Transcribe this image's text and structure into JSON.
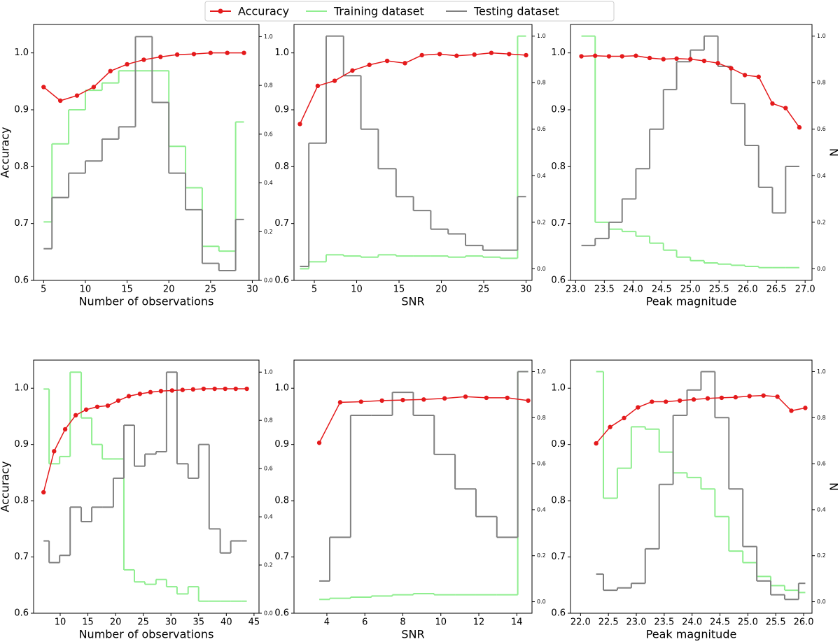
{
  "legend": [
    {
      "name": "Accuracy",
      "color": "#e41a1c"
    },
    {
      "name": "Training dataset",
      "color": "#90ee90"
    },
    {
      "name": "Testing dataset",
      "color": "#808080"
    }
  ],
  "chart_data": [
    {
      "type": "line",
      "xlabel": "Number of observations",
      "ylabel": "Accuracy",
      "xlim": [
        3.8,
        30.8
      ],
      "xticks": [
        5,
        10,
        15,
        20,
        25,
        30
      ],
      "ylim": [
        0.6,
        1.05
      ],
      "yticks": [
        0.6,
        0.7,
        0.8,
        0.9,
        {
          "value": 1,
          "label": "1.0"
        }
      ],
      "y2lim": [
        0,
        1.05
      ],
      "y2ticks": [
        {
          "value": 0,
          "label": "0.0"
        },
        0.2,
        0.4,
        0.6,
        0.8,
        {
          "value": 1,
          "label": "1.0"
        }
      ],
      "series": [
        {
          "type": "line",
          "x": [
            5,
            7,
            9,
            11,
            13,
            15,
            17,
            19,
            21,
            23,
            25,
            27,
            29
          ],
          "values": [
            0.94,
            0.916,
            0.925,
            0.94,
            0.968,
            0.98,
            0.988,
            0.993,
            0.997,
            0.998,
            1.0,
            1.0,
            1.0
          ]
        },
        {
          "type": "step",
          "axis": "y2",
          "bins": [
            5,
            6,
            8,
            10,
            12,
            14,
            16,
            18,
            20,
            22,
            24,
            26,
            28,
            29
          ],
          "values": [
            0.24,
            0.56,
            0.7,
            0.78,
            0.81,
            0.86,
            0.86,
            0.86,
            0.55,
            0.38,
            0.14,
            0.12,
            0.65
          ]
        },
        {
          "type": "step",
          "axis": "y2",
          "bins": [
            5,
            6,
            8,
            10,
            12,
            14,
            16,
            18,
            20,
            22,
            24,
            26,
            28,
            29
          ],
          "values": [
            0.13,
            0.34,
            0.44,
            0.49,
            0.58,
            0.63,
            1.0,
            0.73,
            0.44,
            0.29,
            0.07,
            0.04,
            0.25
          ]
        }
      ]
    },
    {
      "type": "line",
      "xlabel": "SNR",
      "xlim": [
        2.6,
        30.7
      ],
      "xticks": [
        5,
        10,
        15,
        20,
        25,
        30
      ],
      "ylim": [
        0.6,
        1.05
      ],
      "yticks": [
        0.6,
        0.7,
        0.8,
        0.9,
        {
          "value": 1,
          "label": "1.0"
        }
      ],
      "y2lim": [
        -0.05,
        1.05
      ],
      "y2ticks": [
        {
          "value": 0,
          "label": "0.0"
        },
        0.2,
        0.4,
        0.6,
        0.8,
        {
          "value": 1,
          "label": "1.0"
        }
      ],
      "series": [
        {
          "type": "line",
          "x": [
            3.3,
            5.4,
            7.4,
            9.5,
            11.5,
            13.6,
            15.7,
            17.7,
            19.8,
            21.8,
            23.9,
            25.9,
            28.0,
            30.0
          ],
          "values": [
            0.875,
            0.942,
            0.951,
            0.969,
            0.979,
            0.986,
            0.982,
            0.996,
            0.998,
            0.995,
            0.997,
            1.0,
            0.998,
            0.996
          ]
        },
        {
          "type": "step",
          "axis": "y2",
          "bins": [
            3.3,
            4.35,
            6.4,
            8.45,
            10.5,
            12.55,
            14.65,
            16.7,
            18.75,
            20.8,
            22.85,
            24.9,
            26.95,
            29.0,
            30.0
          ],
          "values": [
            0.0,
            0.03,
            0.06,
            0.055,
            0.05,
            0.06,
            0.055,
            0.055,
            0.055,
            0.05,
            0.055,
            0.05,
            0.045,
            1.0
          ]
        },
        {
          "type": "step",
          "axis": "y2",
          "bins": [
            3.3,
            4.35,
            6.4,
            8.45,
            10.5,
            12.55,
            14.65,
            16.7,
            18.75,
            20.8,
            22.85,
            24.9,
            26.95,
            29.0,
            30.0
          ],
          "values": [
            0.01,
            0.54,
            1.0,
            0.83,
            0.6,
            0.43,
            0.31,
            0.25,
            0.17,
            0.15,
            0.1,
            0.08,
            0.08,
            0.31
          ]
        }
      ]
    },
    {
      "type": "line",
      "xlabel": "Peak magnitude",
      "y2label": "N",
      "xlim": [
        22.91,
        27.12
      ],
      "xticks": [
        {
          "value": 23,
          "label": "23.0"
        },
        23.5,
        {
          "value": 24,
          "label": "24.0"
        },
        24.5,
        {
          "value": 25,
          "label": "25.0"
        },
        25.5,
        {
          "value": 26,
          "label": "26.0"
        },
        26.5,
        {
          "value": 27,
          "label": "27.0"
        }
      ],
      "ylim": [
        0.6,
        1.05
      ],
      "yticks": [
        0.6,
        0.7,
        0.8,
        0.9,
        {
          "value": 1,
          "label": "1.0"
        }
      ],
      "y2lim": [
        -0.05,
        1.05
      ],
      "y2ticks": [
        {
          "value": 0,
          "label": "0.0"
        },
        0.2,
        0.4,
        0.6,
        0.8,
        {
          "value": 1,
          "label": "1.0"
        }
      ],
      "series": [
        {
          "type": "line",
          "x": [
            23.1,
            23.34,
            23.58,
            23.81,
            24.05,
            24.29,
            24.53,
            24.76,
            25.0,
            25.24,
            25.48,
            25.71,
            25.95,
            26.19,
            26.43,
            26.66,
            26.9
          ],
          "values": [
            0.994,
            0.995,
            0.994,
            0.994,
            0.995,
            0.991,
            0.989,
            0.99,
            0.989,
            0.986,
            0.982,
            0.973,
            0.961,
            0.958,
            0.911,
            0.903,
            0.869
          ]
        },
        {
          "type": "step",
          "axis": "y2",
          "bins": [
            23.1,
            23.34,
            23.58,
            23.81,
            24.05,
            24.29,
            24.53,
            24.76,
            25.0,
            25.24,
            25.48,
            25.71,
            25.95,
            26.19,
            26.43,
            26.66,
            26.9
          ],
          "values": [
            1.0,
            0.2,
            0.17,
            0.16,
            0.14,
            0.11,
            0.08,
            0.05,
            0.035,
            0.025,
            0.02,
            0.015,
            0.01,
            0.005,
            0.005,
            0.005
          ]
        },
        {
          "type": "step",
          "axis": "y2",
          "bins": [
            23.1,
            23.34,
            23.58,
            23.81,
            24.05,
            24.29,
            24.53,
            24.76,
            25.0,
            25.24,
            25.48,
            25.71,
            25.95,
            26.19,
            26.43,
            26.66,
            26.9
          ],
          "values": [
            0.1,
            0.13,
            0.2,
            0.3,
            0.43,
            0.6,
            0.77,
            0.89,
            0.94,
            1.0,
            0.87,
            0.71,
            0.53,
            0.35,
            0.24,
            0.44
          ]
        }
      ]
    },
    {
      "type": "line",
      "xlabel": "Number of observations",
      "ylabel": "Accuracy",
      "xlim": [
        5.2,
        45.9
      ],
      "xticks": [
        10,
        15,
        20,
        25,
        30,
        35,
        40,
        45
      ],
      "ylim": [
        0.6,
        1.05
      ],
      "yticks": [
        0.6,
        0.7,
        0.8,
        0.9,
        {
          "value": 1,
          "label": "1.0"
        }
      ],
      "y2lim": [
        0,
        1.05
      ],
      "y2ticks": [
        {
          "value": 0,
          "label": "0.0"
        },
        0.2,
        0.4,
        0.6,
        0.8,
        {
          "value": 1,
          "label": "1.0"
        }
      ],
      "series": [
        {
          "type": "line",
          "x": [
            7.0,
            8.9,
            10.9,
            12.8,
            14.7,
            16.7,
            18.6,
            20.5,
            22.4,
            24.4,
            26.3,
            28.2,
            30.2,
            32.1,
            34.0,
            35.9,
            37.9,
            39.8,
            41.7,
            43.7
          ],
          "values": [
            0.815,
            0.888,
            0.927,
            0.952,
            0.962,
            0.967,
            0.969,
            0.978,
            0.986,
            0.99,
            0.993,
            0.995,
            0.996,
            0.997,
            0.998,
            0.999,
            0.999,
            0.999,
            0.999,
            0.999
          ]
        },
        {
          "type": "step",
          "axis": "y2",
          "bins": [
            7.0,
            8.0,
            9.9,
            11.8,
            13.8,
            15.7,
            17.6,
            19.6,
            21.5,
            23.4,
            25.3,
            27.3,
            29.2,
            31.1,
            33.1,
            35.0,
            36.9,
            38.9,
            40.8,
            42.7,
            43.7
          ],
          "values": [
            0.93,
            0.62,
            0.65,
            1.0,
            0.81,
            0.7,
            0.64,
            0.64,
            0.18,
            0.13,
            0.12,
            0.14,
            0.11,
            0.08,
            0.11,
            0.05,
            0.05,
            0.05,
            0.05,
            0.05
          ]
        },
        {
          "type": "step",
          "axis": "y2",
          "bins": [
            7.0,
            8.0,
            9.9,
            11.8,
            13.8,
            15.7,
            17.6,
            19.6,
            21.5,
            23.4,
            25.3,
            27.3,
            29.2,
            31.1,
            33.1,
            35.0,
            36.9,
            38.9,
            40.8,
            42.7,
            43.7
          ],
          "values": [
            0.3,
            0.21,
            0.24,
            0.44,
            0.38,
            0.44,
            0.44,
            0.56,
            0.78,
            0.61,
            0.66,
            0.67,
            1.0,
            0.62,
            0.56,
            0.7,
            0.35,
            0.25,
            0.3,
            0.3
          ]
        }
      ]
    },
    {
      "type": "line",
      "xlabel": "SNR",
      "xlim": [
        2.27,
        14.8
      ],
      "xticks": [
        4,
        6,
        8,
        10,
        12,
        14
      ],
      "ylim": [
        0.6,
        1.05
      ],
      "yticks": [
        0.6,
        0.7,
        0.8,
        0.9,
        {
          "value": 1,
          "label": "1.0"
        }
      ],
      "y2lim": [
        -0.05,
        1.05
      ],
      "y2ticks": [
        {
          "value": 0,
          "label": "0.0"
        },
        0.2,
        0.4,
        0.6,
        0.8,
        {
          "value": 1,
          "label": "1.0"
        }
      ],
      "series": [
        {
          "type": "line",
          "x": [
            3.6,
            4.7,
            5.8,
            6.9,
            8.0,
            9.1,
            10.2,
            11.3,
            12.4,
            13.5,
            14.6
          ],
          "values": [
            0.903,
            0.975,
            0.976,
            0.978,
            0.979,
            0.98,
            0.982,
            0.985,
            0.983,
            0.983,
            0.978
          ]
        },
        {
          "type": "step",
          "axis": "y2",
          "bins": [
            3.6,
            4.15,
            5.25,
            6.35,
            7.45,
            8.55,
            9.65,
            10.75,
            11.85,
            12.95,
            14.05,
            14.6
          ],
          "values": [
            0.01,
            0.015,
            0.02,
            0.025,
            0.03,
            0.035,
            0.03,
            0.03,
            0.03,
            0.03,
            1.0
          ]
        },
        {
          "type": "step",
          "axis": "y2",
          "bins": [
            3.6,
            4.15,
            5.25,
            6.35,
            7.45,
            8.55,
            9.65,
            10.75,
            11.85,
            12.95,
            14.05,
            14.6
          ],
          "values": [
            0.09,
            0.28,
            0.81,
            0.81,
            0.91,
            0.81,
            0.64,
            0.49,
            0.37,
            0.28,
            1.0
          ]
        }
      ]
    },
    {
      "type": "line",
      "xlabel": "Peak magnitude",
      "y2label": "N",
      "xlim": [
        21.82,
        26.15
      ],
      "xticks": [
        {
          "value": 22,
          "label": "22.0"
        },
        22.5,
        {
          "value": 23,
          "label": "23.0"
        },
        23.5,
        {
          "value": 24,
          "label": "24.0"
        },
        24.5,
        {
          "value": 25,
          "label": "25.0"
        },
        25.5,
        {
          "value": 26,
          "label": "26.0"
        }
      ],
      "ylim": [
        0.6,
        1.05
      ],
      "yticks": [
        0.6,
        0.7,
        0.8,
        0.9,
        {
          "value": 1,
          "label": "1.0"
        }
      ],
      "y2lim": [
        -0.05,
        1.05
      ],
      "y2ticks": [
        {
          "value": 0,
          "label": "0.0"
        },
        0.2,
        0.4,
        0.6,
        0.8,
        {
          "value": 1,
          "label": "1.0"
        }
      ],
      "series": [
        {
          "type": "line",
          "x": [
            22.28,
            22.53,
            22.78,
            23.03,
            23.28,
            23.53,
            23.78,
            24.03,
            24.28,
            24.53,
            24.78,
            25.03,
            25.28,
            25.53,
            25.78,
            26.03
          ],
          "values": [
            0.902,
            0.931,
            0.947,
            0.966,
            0.976,
            0.976,
            0.978,
            0.98,
            0.982,
            0.983,
            0.984,
            0.986,
            0.987,
            0.985,
            0.96,
            0.965
          ]
        },
        {
          "type": "step",
          "axis": "y2",
          "bins": [
            22.28,
            22.41,
            22.66,
            22.91,
            23.16,
            23.41,
            23.66,
            23.91,
            24.16,
            24.41,
            24.66,
            24.91,
            25.16,
            25.41,
            25.66,
            25.91,
            26.03
          ],
          "values": [
            1.0,
            0.45,
            0.58,
            0.76,
            0.75,
            0.65,
            0.56,
            0.54,
            0.49,
            0.37,
            0.22,
            0.17,
            0.11,
            0.07,
            0.05,
            0.04
          ]
        },
        {
          "type": "step",
          "axis": "y2",
          "bins": [
            22.28,
            22.41,
            22.66,
            22.91,
            23.16,
            23.41,
            23.66,
            23.91,
            24.16,
            24.41,
            24.66,
            24.91,
            25.16,
            25.41,
            25.66,
            25.91,
            26.03
          ],
          "values": [
            0.12,
            0.05,
            0.06,
            0.08,
            0.23,
            0.51,
            0.81,
            0.92,
            1.0,
            0.8,
            0.49,
            0.24,
            0.09,
            0.03,
            0.01,
            0.08
          ]
        }
      ]
    }
  ]
}
